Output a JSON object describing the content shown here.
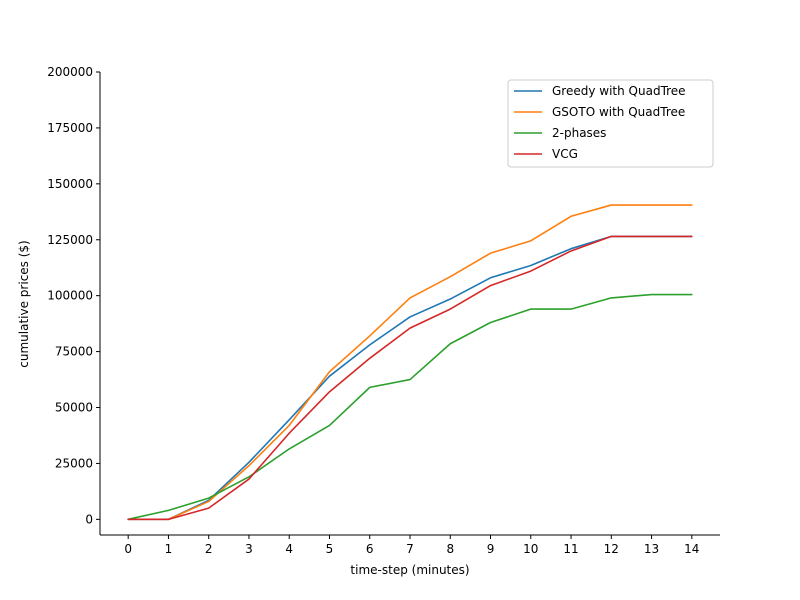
{
  "chart_data": {
    "type": "line",
    "xlabel": "time-step (minutes)",
    "ylabel": "cumulative prices ($)",
    "x": [
      0,
      1,
      2,
      3,
      4,
      5,
      6,
      7,
      8,
      9,
      10,
      11,
      12,
      13,
      14
    ],
    "x_tick_labels": [
      "0",
      "1",
      "2",
      "3",
      "4",
      "5",
      "6",
      "7",
      "8",
      "9",
      "10",
      "11",
      "12",
      "13",
      "14"
    ],
    "y_tick_labels": [
      "0",
      "25000",
      "50000",
      "75000",
      "100000",
      "125000",
      "150000",
      "175000",
      "200000"
    ],
    "y_ticks": [
      0,
      25000,
      50000,
      75000,
      100000,
      125000,
      150000,
      175000,
      200000
    ],
    "xlim": [
      -0.7,
      14.7
    ],
    "ylim": [
      -7000,
      200000
    ],
    "grid": false,
    "legend_position": "top-right",
    "series": [
      {
        "name": "Greedy with QuadTree",
        "color": "#1f77b4",
        "values": [
          0,
          0,
          8500,
          25500,
          44500,
          64000,
          78000,
          90500,
          98500,
          108000,
          113500,
          121000,
          126500,
          126500,
          126500
        ]
      },
      {
        "name": "GSOTO with QuadTree",
        "color": "#ff7f0e",
        "values": [
          0,
          0,
          8000,
          24000,
          42000,
          66000,
          82000,
          99000,
          108500,
          119000,
          124500,
          135500,
          140500,
          140500,
          140500
        ]
      },
      {
        "name": "2-phases",
        "color": "#2ca02c",
        "values": [
          0,
          4000,
          9500,
          19000,
          31500,
          42000,
          59000,
          62500,
          78500,
          88000,
          94000,
          94000,
          99000,
          100500,
          100500
        ]
      },
      {
        "name": "VCG",
        "color": "#d62728",
        "values": [
          0,
          0,
          5000,
          18000,
          38500,
          57000,
          72000,
          85500,
          94000,
          104500,
          111000,
          120000,
          126500,
          126500,
          126500
        ]
      }
    ]
  }
}
